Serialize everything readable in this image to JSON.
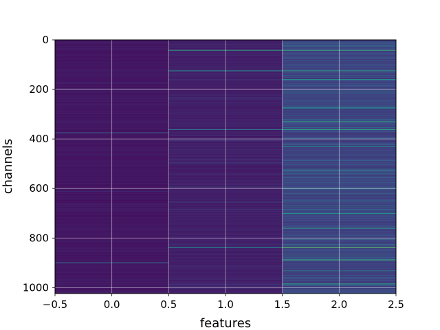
{
  "chart_data": {
    "type": "heatmap",
    "xlabel": "features",
    "ylabel": "channels",
    "xlim": [
      -0.5,
      2.5
    ],
    "ylim": [
      1024,
      0
    ],
    "y_axis_inverted": true,
    "x_ticks": [
      {
        "value": -0.5,
        "label": "−0.5"
      },
      {
        "value": 0.0,
        "label": "0.0"
      },
      {
        "value": 0.5,
        "label": "0.5"
      },
      {
        "value": 1.0,
        "label": "1.0"
      },
      {
        "value": 1.5,
        "label": "1.5"
      },
      {
        "value": 2.0,
        "label": "2.0"
      },
      {
        "value": 2.5,
        "label": "2.5"
      }
    ],
    "y_ticks": [
      {
        "value": 0,
        "label": "0"
      },
      {
        "value": 200,
        "label": "200"
      },
      {
        "value": 400,
        "label": "400"
      },
      {
        "value": 600,
        "label": "600"
      },
      {
        "value": 800,
        "label": "800"
      },
      {
        "value": 1000,
        "label": "1000"
      }
    ],
    "grid": true,
    "colormap": "viridis",
    "columns": [
      {
        "feature": 0,
        "base_intensity": 0.04,
        "bright_rows": [
          {
            "channel": 900,
            "intensity": 0.35
          },
          {
            "channel": 375,
            "intensity": 0.3
          }
        ]
      },
      {
        "feature": 1,
        "base_intensity": 0.06,
        "bright_rows": [
          {
            "channel": 42,
            "intensity": 0.55
          },
          {
            "channel": 125,
            "intensity": 0.5
          },
          {
            "channel": 362,
            "intensity": 0.35
          },
          {
            "channel": 838,
            "intensity": 0.5
          }
        ]
      },
      {
        "feature": 2,
        "base_intensity": 0.14,
        "bright_rows": [
          {
            "channel": 42,
            "intensity": 0.6
          },
          {
            "channel": 125,
            "intensity": 0.55
          },
          {
            "channel": 160,
            "intensity": 0.5
          },
          {
            "channel": 275,
            "intensity": 0.5
          },
          {
            "channel": 330,
            "intensity": 0.55
          },
          {
            "channel": 362,
            "intensity": 0.55
          },
          {
            "channel": 430,
            "intensity": 0.5
          },
          {
            "channel": 600,
            "intensity": 0.45
          },
          {
            "channel": 700,
            "intensity": 0.5
          },
          {
            "channel": 760,
            "intensity": 0.55
          },
          {
            "channel": 838,
            "intensity": 0.75
          },
          {
            "channel": 888,
            "intensity": 0.6
          },
          {
            "channel": 985,
            "intensity": 0.55
          }
        ]
      }
    ]
  }
}
